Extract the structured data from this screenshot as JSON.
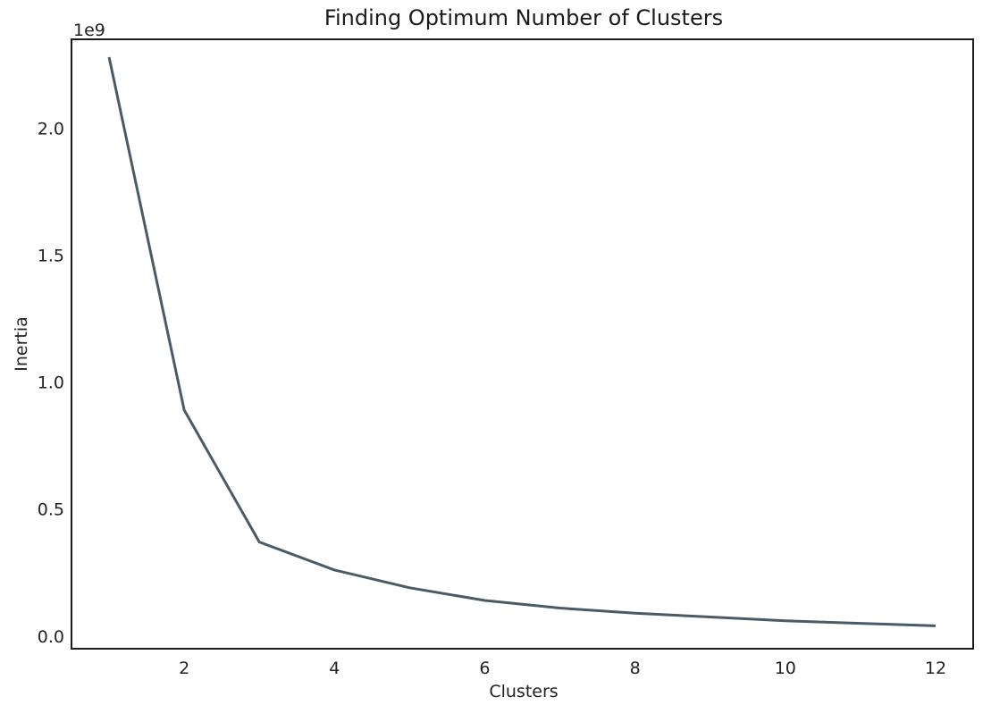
{
  "chart_data": {
    "type": "line",
    "title": "Finding Optimum Number of Clusters",
    "xlabel": "Clusters",
    "ylabel": "Inertia",
    "y_offset_label": "1e9",
    "xlim": [
      0.5,
      12.5
    ],
    "ylim": [
      -0.05,
      2.35
    ],
    "x_ticks": [
      2,
      4,
      6,
      8,
      10,
      12
    ],
    "x_tick_labels": [
      "2",
      "4",
      "6",
      "8",
      "10",
      "12"
    ],
    "y_ticks": [
      0.0,
      0.5,
      1.0,
      1.5,
      2.0
    ],
    "y_tick_labels": [
      "0.0",
      "0.5",
      "1.0",
      "1.5",
      "2.0"
    ],
    "grid": false,
    "series": [
      {
        "color": "#4a5a66",
        "x": [
          1,
          2,
          3,
          4,
          5,
          6,
          7,
          8,
          9,
          10,
          11,
          12
        ],
        "y": [
          2.28,
          0.89,
          0.37,
          0.26,
          0.19,
          0.14,
          0.11,
          0.09,
          0.075,
          0.06,
          0.05,
          0.04
        ]
      }
    ]
  }
}
